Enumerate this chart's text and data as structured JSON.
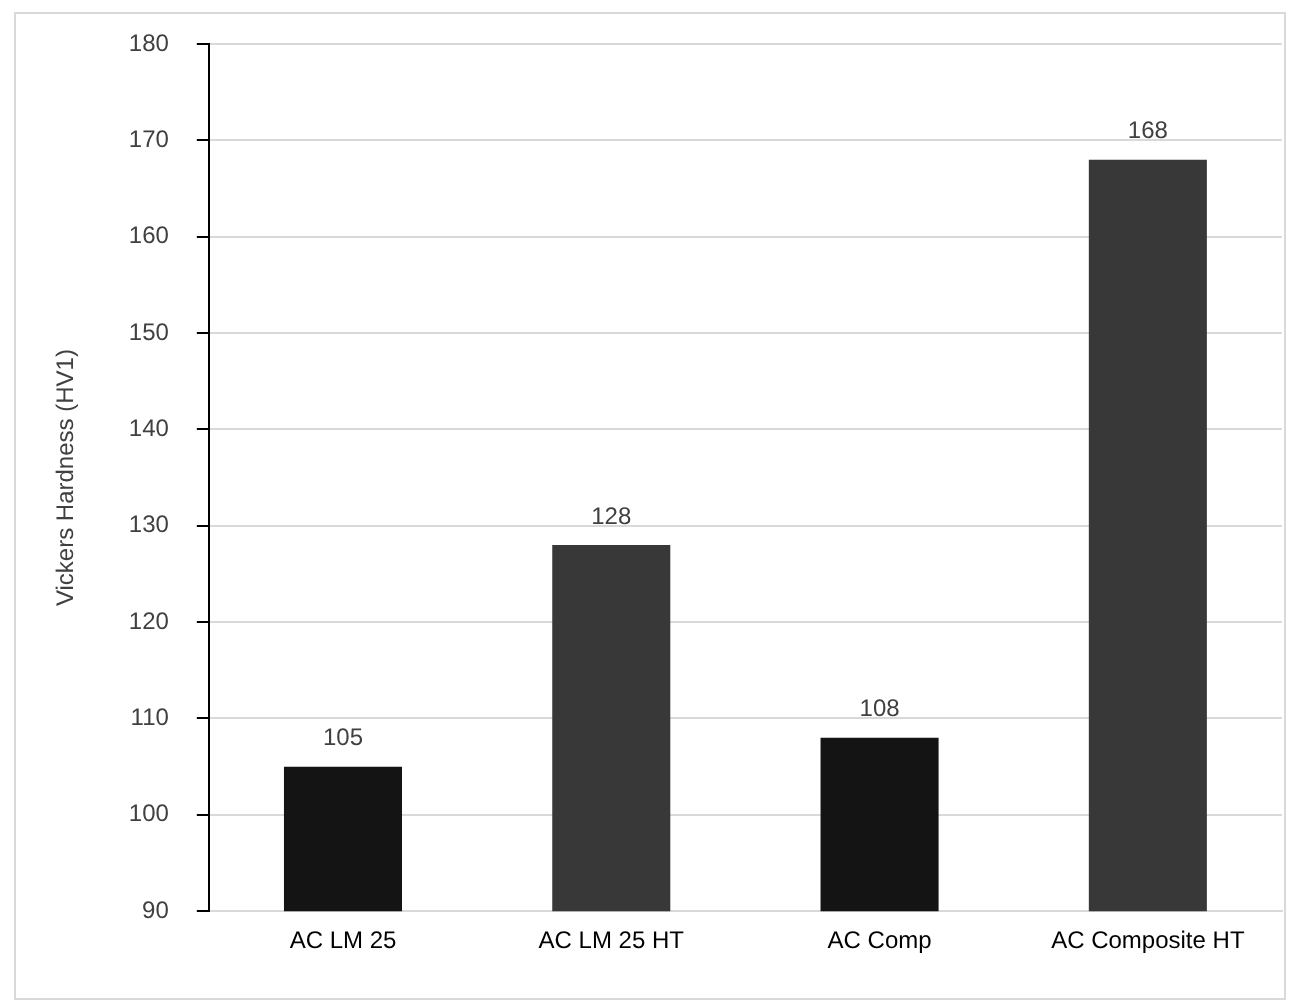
{
  "chart_data": {
    "type": "bar",
    "ylabel": "Vickers Hardness (HV1)",
    "categories": [
      "AC LM 25",
      "AC LM 25 HT",
      "AC Comp",
      "AC Composite HT"
    ],
    "values": [
      105,
      128,
      108,
      168
    ],
    "colors": [
      "#141414",
      "#383838",
      "#141414",
      "#383838"
    ],
    "ylim": [
      90,
      180
    ],
    "yticks": [
      90,
      100,
      110,
      120,
      130,
      140,
      150,
      160,
      170,
      180
    ],
    "grid": "y",
    "data_labels": true,
    "legend": false
  }
}
